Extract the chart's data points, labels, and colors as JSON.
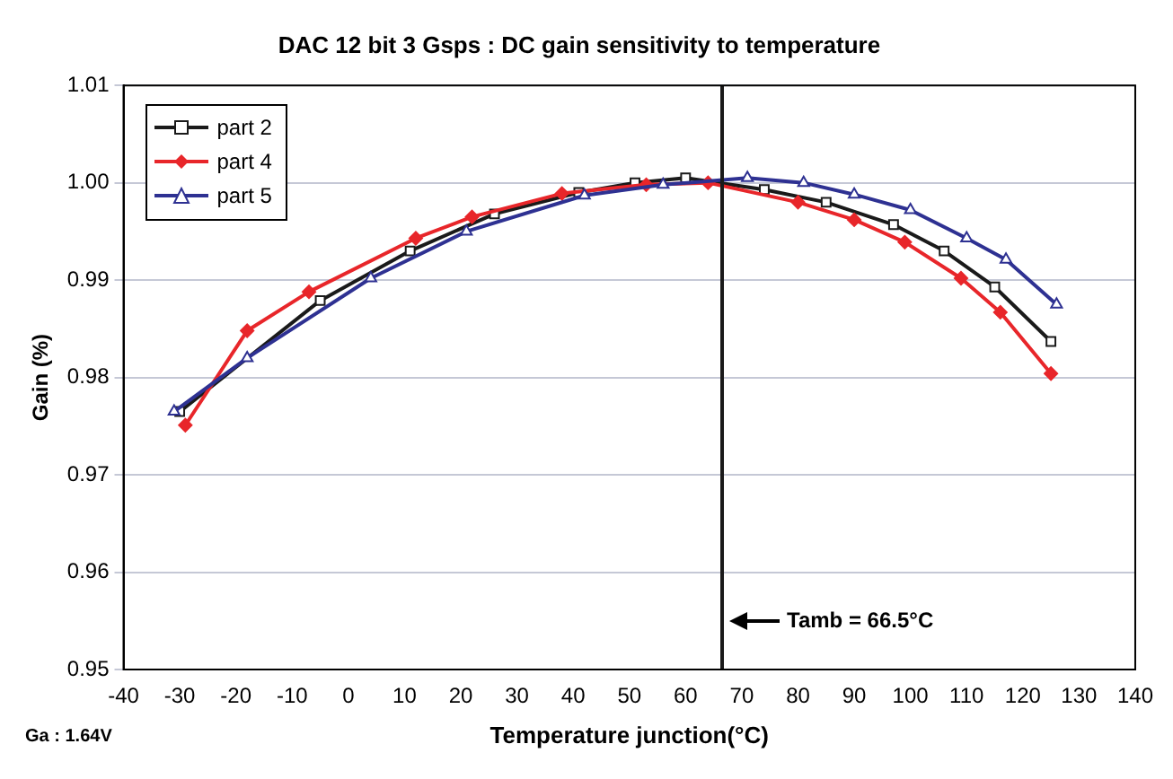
{
  "chart_data": {
    "type": "line",
    "title": "DAC 12 bit 3 Gsps : DC gain sensitivity to temperature",
    "xlabel": "Temperature junction(°C)",
    "ylabel": "Gain (%)",
    "xlim": [
      -40,
      140
    ],
    "xticks": [
      -40,
      -30,
      -20,
      -10,
      0,
      10,
      20,
      30,
      40,
      50,
      60,
      70,
      80,
      90,
      100,
      110,
      120,
      130,
      140
    ],
    "ylim": [
      0.95,
      1.01
    ],
    "yticks": [
      0.95,
      0.96,
      0.97,
      0.98,
      0.99,
      {
        "value": 1,
        "label": "1.00"
      },
      1.01
    ],
    "grid": "y",
    "legend": "top left",
    "line_style": "solid",
    "series": [
      {
        "name": "part 2",
        "color": "#1a1a1a",
        "marker": "square",
        "x": [
          -30,
          -5,
          11,
          26,
          41,
          51,
          60,
          74,
          85,
          97,
          106,
          115,
          125
        ],
        "values": [
          0.9765,
          0.9879,
          0.993,
          0.9968,
          0.999,
          1.0,
          1.0005,
          0.9993,
          0.998,
          0.9957,
          0.993,
          0.9893,
          0.9837
        ]
      },
      {
        "name": "part 4",
        "color": "#e8262a",
        "marker": "diamond",
        "x": [
          -29,
          -18,
          -7,
          12,
          22,
          38,
          53,
          64,
          80,
          90,
          99,
          109,
          116,
          125
        ],
        "values": [
          0.9751,
          0.9848,
          0.9888,
          0.9943,
          0.9965,
          0.9989,
          0.9998,
          1.0,
          0.998,
          0.9962,
          0.9939,
          0.9902,
          0.9867,
          0.9804
        ]
      },
      {
        "name": "part 5",
        "color": "#2e3192",
        "marker": "triangle",
        "x": [
          -31,
          -18,
          4,
          21,
          42,
          56,
          71,
          81,
          90,
          100,
          110,
          117,
          126
        ],
        "values": [
          0.9765,
          0.982,
          0.9902,
          0.995,
          0.9987,
          0.9998,
          1.0005,
          1.0,
          0.9988,
          0.9972,
          0.9943,
          0.9921,
          0.9875
        ]
      }
    ],
    "ref_lines": [
      {
        "axis": "x",
        "value": 66.5,
        "label": "Tamb = 66.5°C",
        "color": "#1a1a1a"
      }
    ],
    "annotations": [
      "Ga : 1.64V"
    ]
  }
}
